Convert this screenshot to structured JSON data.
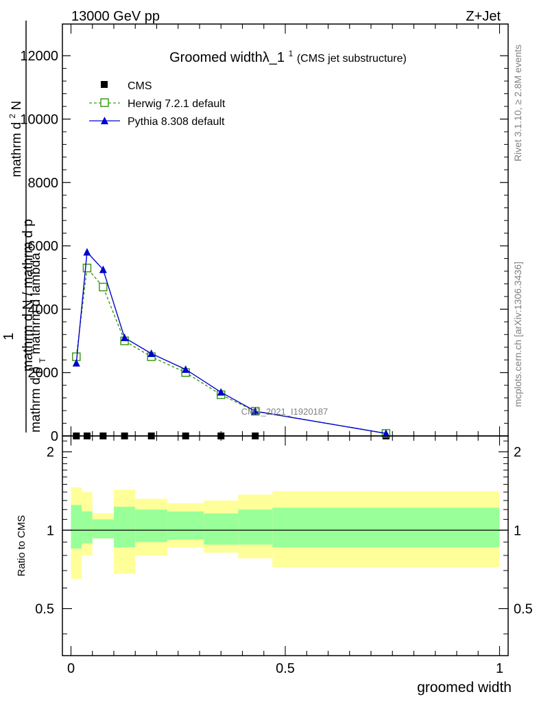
{
  "header": {
    "left": "13000 GeV pp",
    "right": "Z+Jet"
  },
  "side": {
    "rivet": "Rivet 3.1.10, ≥ 2.8M events",
    "site": "mcplots.cern.ch [arXiv:1306.3436]"
  },
  "chart_data": [
    {
      "type": "line",
      "title": "Groomed widthλ_1",
      "title_sup": "1",
      "subtitle": "(CMS jet substructure)",
      "ylabel_num": "1",
      "ylabel_den": "mathrm d N / mathrm d p",
      "ylabel_right_num": "mathrm d",
      "ylabel_right_super": "2",
      "ylabel_right_N": "N",
      "ylabel_right_den": "mathrm d p",
      "ylabel_right_sub": "T",
      "ylabel_right_tail": "mathrm d lambda",
      "watermark": "CMS_2021_I1920187",
      "ylim": [
        0,
        13000
      ],
      "xlim": [
        -0.02,
        1.02
      ],
      "yticks": [
        0,
        2000,
        4000,
        6000,
        8000,
        10000,
        12000
      ],
      "ytick_labels": [
        "0",
        "2000",
        "4000",
        "6000",
        "8000",
        "10000",
        "12000"
      ],
      "legend_position": "top-left",
      "x": [
        0.0125,
        0.0375,
        0.075,
        0.125,
        0.1875,
        0.2675,
        0.35,
        0.43,
        0.735
      ],
      "series": [
        {
          "name": "CMS",
          "color": "#000000",
          "marker": "square",
          "values": [
            0,
            0,
            0,
            0,
            0,
            0,
            0,
            0,
            0
          ]
        },
        {
          "name": "Herwig 7.2.1 default",
          "color": "#3a9a1a",
          "marker": "open-square",
          "dashed": true,
          "values": [
            2500,
            5300,
            4700,
            3000,
            2500,
            2000,
            1300,
            780,
            80
          ]
        },
        {
          "name": "Pythia 8.308 default",
          "color": "#0000cc",
          "marker": "triangle",
          "values": [
            2300,
            5800,
            5250,
            3100,
            2600,
            2100,
            1380,
            780,
            80
          ]
        }
      ]
    },
    {
      "type": "area",
      "ylabel": "Ratio to CMS",
      "xlabel": "groomed width",
      "ylim": [
        0.33,
        2.3
      ],
      "log_y": true,
      "yticks": [
        0.5,
        1,
        2
      ],
      "ytick_labels": [
        "0.5",
        "1",
        "2"
      ],
      "xticks": [
        0,
        0.5,
        1
      ],
      "xtick_labels": [
        "0",
        "0.5",
        "1"
      ],
      "bins": [
        0,
        0.025,
        0.05,
        0.1,
        0.15,
        0.225,
        0.31,
        0.39,
        0.47,
        1.0
      ],
      "green_band": {
        "color": "#99ff99",
        "lower": [
          0.85,
          0.89,
          0.93,
          0.86,
          0.9,
          0.92,
          0.88,
          0.88,
          0.86
        ],
        "upper": [
          1.25,
          1.18,
          1.1,
          1.23,
          1.2,
          1.18,
          1.16,
          1.2,
          1.22
        ]
      },
      "yellow_band": {
        "color": "#ffff99",
        "lower": [
          0.65,
          0.8,
          0.93,
          0.68,
          0.8,
          0.86,
          0.82,
          0.78,
          0.72
        ],
        "upper": [
          1.46,
          1.4,
          1.16,
          1.43,
          1.32,
          1.27,
          1.3,
          1.37,
          1.41
        ]
      }
    }
  ]
}
